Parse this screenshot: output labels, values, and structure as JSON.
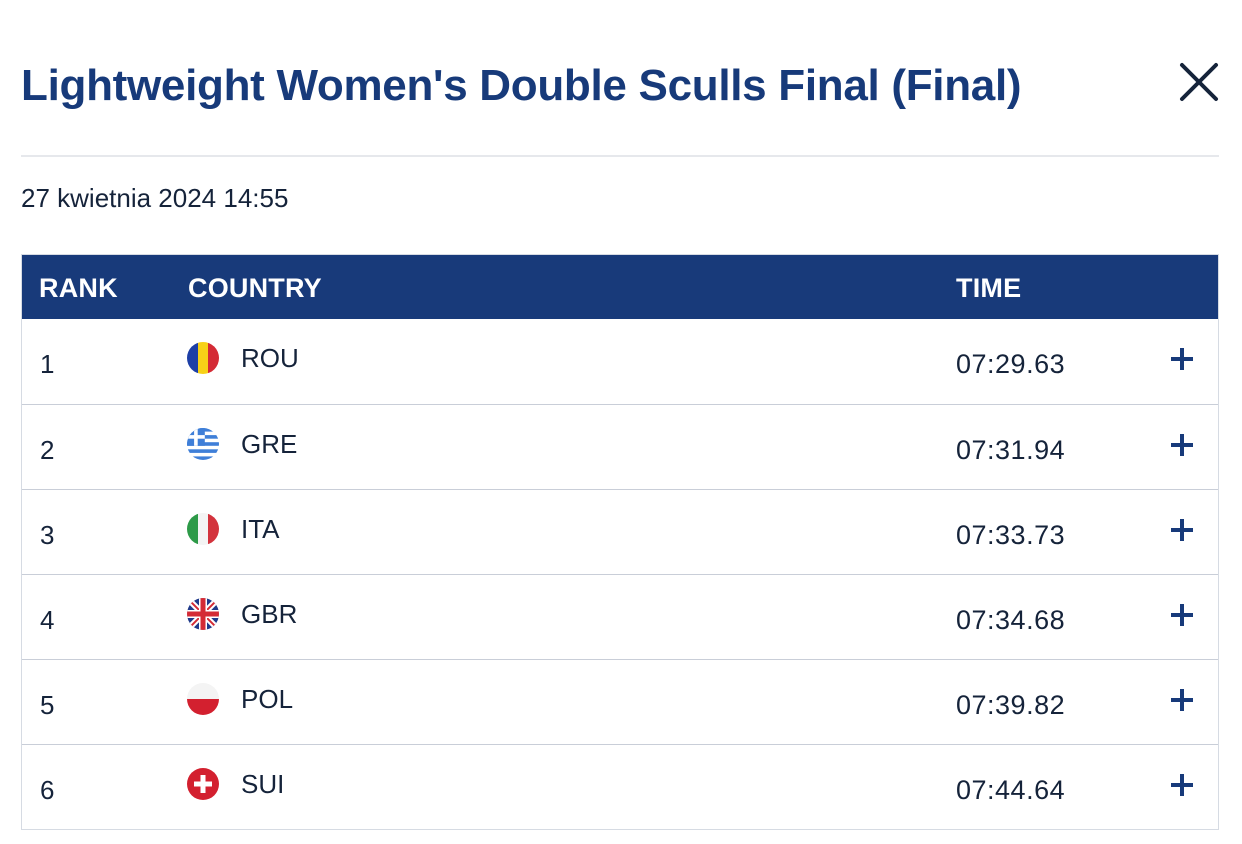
{
  "modal": {
    "title": "Lightweight Women's Double Sculls Final (Final)",
    "date": "27 kwietnia 2024 14:55",
    "close_icon": "close-icon"
  },
  "table": {
    "headers": {
      "rank": "RANK",
      "country": "COUNTRY",
      "time": "TIME"
    },
    "rows": [
      {
        "rank": "1",
        "code": "ROU",
        "time": "07:29.63",
        "flag": "romania-flag-icon"
      },
      {
        "rank": "2",
        "code": "GRE",
        "time": "07:31.94",
        "flag": "greece-flag-icon"
      },
      {
        "rank": "3",
        "code": "ITA",
        "time": "07:33.73",
        "flag": "italy-flag-icon"
      },
      {
        "rank": "4",
        "code": "GBR",
        "time": "07:34.68",
        "flag": "uk-flag-icon"
      },
      {
        "rank": "5",
        "code": "POL",
        "time": "07:39.82",
        "flag": "poland-flag-icon"
      },
      {
        "rank": "6",
        "code": "SUI",
        "time": "07:44.64",
        "flag": "switzerland-flag-icon"
      }
    ],
    "expand_icon": "plus-icon"
  },
  "colors": {
    "title": "#173a7a",
    "header_bg": "#183a7a",
    "header_text": "#ffffff",
    "text": "#15233a",
    "row_border": "#c9ced8"
  }
}
